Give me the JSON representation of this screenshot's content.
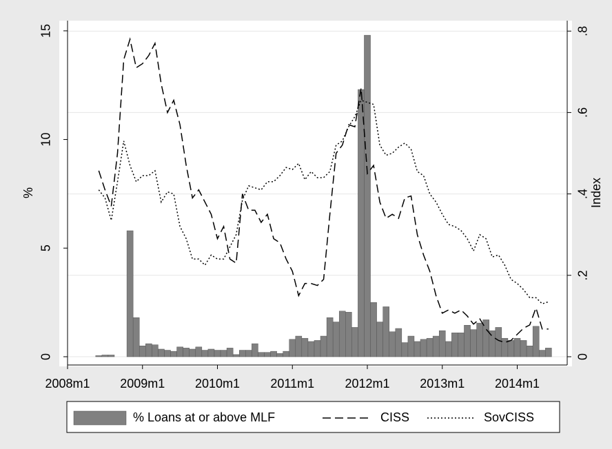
{
  "chart_data": {
    "type": "combo",
    "y_label": "%",
    "y2_label": "Index",
    "x": [
      "2008m6",
      "2008m7",
      "2008m8",
      "2008m9",
      "2008m10",
      "2008m11",
      "2008m12",
      "2009m1",
      "2009m2",
      "2009m3",
      "2009m4",
      "2009m5",
      "2009m6",
      "2009m7",
      "2009m8",
      "2009m9",
      "2009m10",
      "2009m11",
      "2009m12",
      "2010m1",
      "2010m2",
      "2010m3",
      "2010m4",
      "2010m5",
      "2010m6",
      "2010m7",
      "2010m8",
      "2010m9",
      "2010m10",
      "2010m11",
      "2010m12",
      "2011m1",
      "2011m2",
      "2011m3",
      "2011m4",
      "2011m5",
      "2011m6",
      "2011m7",
      "2011m8",
      "2011m9",
      "2011m10",
      "2011m11",
      "2011m12",
      "2012m1",
      "2012m2",
      "2012m3",
      "2012m4",
      "2012m5",
      "2012m6",
      "2012m7",
      "2012m8",
      "2012m9",
      "2012m10",
      "2012m11",
      "2012m12",
      "2013m1",
      "2013m2",
      "2013m3",
      "2013m4",
      "2013m5",
      "2013m6",
      "2013m7",
      "2013m8",
      "2013m9",
      "2013m10",
      "2013m11",
      "2013m12",
      "2014m1",
      "2014m2",
      "2014m3",
      "2014m4",
      "2014m5",
      "2014m6"
    ],
    "series": [
      {
        "name": "% Loans at or above MLF",
        "type": "bar",
        "axis": "y",
        "color": "#808080",
        "values": [
          0.05,
          0.08,
          0.08,
          0,
          0,
          5.8,
          1.8,
          0.5,
          0.6,
          0.55,
          0.35,
          0.3,
          0.25,
          0.45,
          0.4,
          0.35,
          0.45,
          0.3,
          0.35,
          0.3,
          0.3,
          0.4,
          0.1,
          0.3,
          0.3,
          0.6,
          0.2,
          0.2,
          0.25,
          0.15,
          0.25,
          0.8,
          0.95,
          0.85,
          0.7,
          0.75,
          0.95,
          1.8,
          1.6,
          2.1,
          2.05,
          1.35,
          12.3,
          14.8,
          2.5,
          1.6,
          2.3,
          1.15,
          1.3,
          0.65,
          0.95,
          0.7,
          0.8,
          0.85,
          0.95,
          1.2,
          0.7,
          1.1,
          1.1,
          1.45,
          1.25,
          1.55,
          1.7,
          1.2,
          1.35,
          0.85,
          0.75,
          0.85,
          0.75,
          0.5,
          1.4,
          0.3,
          0.4
        ]
      },
      {
        "name": "CISS",
        "type": "line",
        "axis": "y2",
        "color": "#000000",
        "dash": "dashed",
        "values": [
          0.457,
          0.41,
          0.37,
          0.5,
          0.73,
          0.78,
          0.71,
          0.72,
          0.74,
          0.77,
          0.67,
          0.6,
          0.63,
          0.57,
          0.47,
          0.39,
          0.41,
          0.38,
          0.35,
          0.29,
          0.32,
          0.24,
          0.23,
          0.4,
          0.36,
          0.36,
          0.33,
          0.35,
          0.29,
          0.28,
          0.24,
          0.21,
          0.15,
          0.18,
          0.18,
          0.175,
          0.19,
          0.35,
          0.5,
          0.52,
          0.57,
          0.565,
          0.66,
          0.45,
          0.47,
          0.38,
          0.34,
          0.35,
          0.34,
          0.39,
          0.395,
          0.3,
          0.25,
          0.21,
          0.15,
          0.107,
          0.115,
          0.107,
          0.115,
          0.1,
          0.08,
          0.093,
          0.068,
          0.05,
          0.04,
          0.035,
          0.04,
          0.055,
          0.07,
          0.078,
          0.12,
          0.068,
          0.068
        ]
      },
      {
        "name": "SovCISS",
        "type": "line",
        "axis": "y2",
        "color": "#000000",
        "dash": "dotted",
        "values": [
          0.41,
          0.39,
          0.335,
          0.43,
          0.53,
          0.47,
          0.43,
          0.445,
          0.445,
          0.457,
          0.38,
          0.405,
          0.4,
          0.32,
          0.29,
          0.24,
          0.24,
          0.225,
          0.25,
          0.24,
          0.24,
          0.27,
          0.3,
          0.385,
          0.42,
          0.415,
          0.41,
          0.43,
          0.43,
          0.445,
          0.465,
          0.46,
          0.475,
          0.435,
          0.455,
          0.44,
          0.44,
          0.455,
          0.52,
          0.53,
          0.565,
          0.59,
          0.63,
          0.625,
          0.62,
          0.52,
          0.495,
          0.5,
          0.515,
          0.525,
          0.51,
          0.455,
          0.445,
          0.4,
          0.38,
          0.35,
          0.325,
          0.32,
          0.31,
          0.29,
          0.26,
          0.3,
          0.29,
          0.245,
          0.25,
          0.225,
          0.19,
          0.18,
          0.165,
          0.145,
          0.145,
          0.13,
          0.135
        ]
      }
    ],
    "xlim": [
      "2008m1",
      "2014m9"
    ],
    "xticks": [
      "2008m1",
      "2009m1",
      "2010m1",
      "2011m1",
      "2012m1",
      "2013m1",
      "2014m1"
    ],
    "ylim": [
      -0.38,
      15.47
    ],
    "yticks": [
      0,
      5,
      10,
      15
    ],
    "y2lim": [
      -0.0203,
      0.8257
    ],
    "y2ticks": [
      0,
      {
        "value": 0.2,
        "label": ".2"
      },
      {
        "value": 0.4,
        "label": ".4"
      },
      {
        "value": 0.6,
        "label": ".6"
      },
      {
        "value": 0.8,
        "label": ".8"
      }
    ],
    "grid": "y2",
    "legend": "bottom"
  }
}
